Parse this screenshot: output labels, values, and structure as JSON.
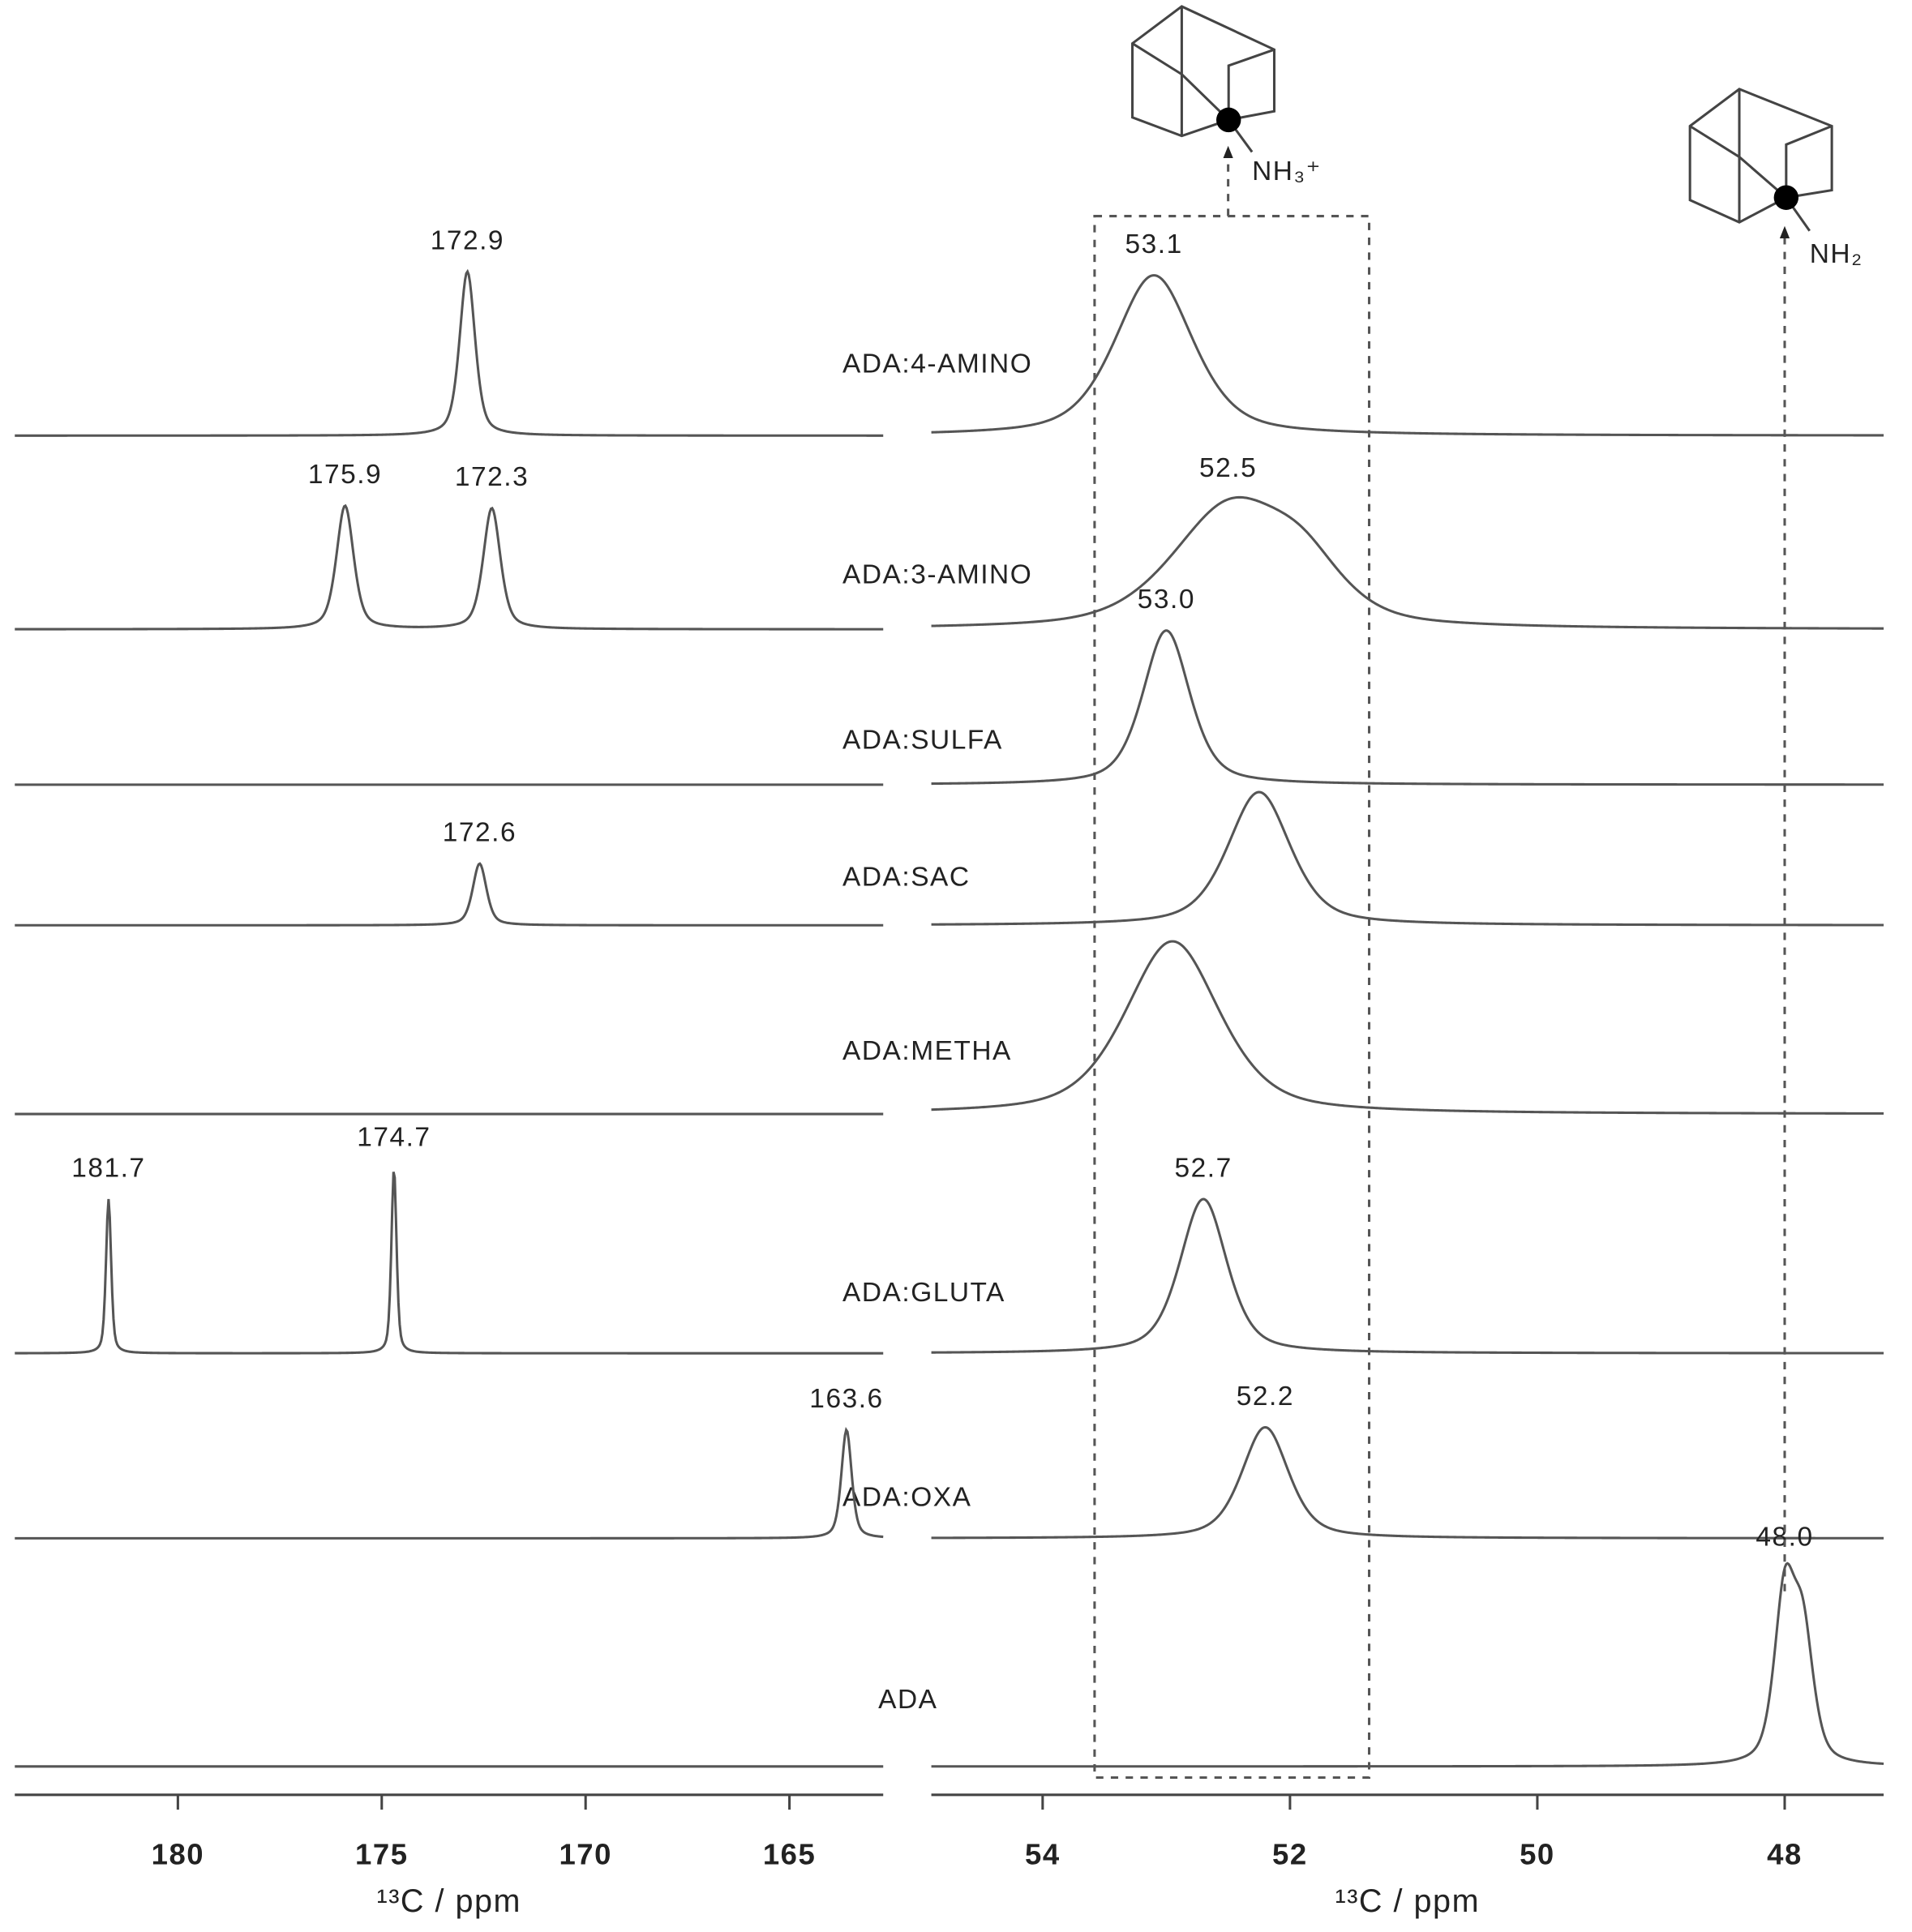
{
  "chart_data": {
    "type": "spectrum",
    "panels": [
      {
        "xlim": [
          184,
          162.7
        ],
        "xticks": [
          180,
          175,
          170,
          165
        ],
        "xlabel": "¹³C / ppm"
      },
      {
        "xlim": [
          54.9,
          47.2
        ],
        "xticks": [
          54,
          52,
          50,
          48
        ],
        "xlabel": "¹³C / ppm",
        "highlight_range": [
          53.58,
          51.36
        ]
      }
    ],
    "series": [
      {
        "name": "ADA:4-AMINO",
        "peaks": [
          [
            {
              "position": 172.9,
              "label": "172.9",
              "height": 133,
              "width": 0.45
            }
          ],
          [
            {
              "position": 53.1,
              "label": "53.1",
              "height": 130,
              "width": 0.75
            }
          ]
        ]
      },
      {
        "name": "ADA:3-AMINO",
        "peaks": [
          [
            {
              "position": 175.9,
              "label": "175.9",
              "height": 100,
              "width": 0.5
            },
            {
              "position": 172.3,
              "label": "172.3",
              "height": 98,
              "width": 0.5
            }
          ],
          [
            {
              "position": 52.5,
              "label": "52.5",
              "height": 95,
              "width": 1.1
            },
            {
              "position": 51.9,
              "height": 40,
              "width": 0.8
            }
          ]
        ]
      },
      {
        "name": "ADA:SULFA",
        "peaks": [
          [],
          [
            {
              "position": 53.0,
              "label": "53.0",
              "height": 125,
              "width": 0.45
            }
          ]
        ]
      },
      {
        "name": "ADA:SAC",
        "peaks": [
          [
            {
              "position": 172.6,
              "label": "172.6",
              "height": 50,
              "width": 0.4
            }
          ],
          [
            {
              "position": 52.25,
              "height": 108,
              "width": 0.6
            }
          ]
        ]
      },
      {
        "name": "ADA:METHA",
        "peaks": [
          [],
          [
            {
              "position": 52.95,
              "height": 140,
              "width": 0.9
            }
          ]
        ]
      },
      {
        "name": "ADA:GLUTA",
        "peaks": [
          [
            {
              "position": 181.7,
              "label": "181.7",
              "height": 125,
              "width": 0.15
            },
            {
              "position": 174.7,
              "label": "174.7",
              "height": 150,
              "width": 0.15
            }
          ],
          [
            {
              "position": 52.7,
              "label": "52.7",
              "height": 125,
              "width": 0.45
            }
          ]
        ]
      },
      {
        "name": "ADA:OXA",
        "peaks": [
          [
            {
              "position": 163.6,
              "label": "163.6",
              "height": 88,
              "width": 0.3
            }
          ],
          [
            {
              "position": 52.2,
              "label": "52.2",
              "height": 90,
              "width": 0.45
            }
          ]
        ]
      },
      {
        "name": "ADA",
        "peaks": [
          [],
          [
            {
              "position": 48.0,
              "label": "48.0",
              "height": 135,
              "width": 0.2
            },
            {
              "position": 47.85,
              "height": 100,
              "width": 0.2
            }
          ]
        ]
      }
    ],
    "annotations": [
      {
        "text": "NH₃⁺",
        "position": 52.5
      },
      {
        "text": "NH₂",
        "position": 48.0
      }
    ]
  }
}
